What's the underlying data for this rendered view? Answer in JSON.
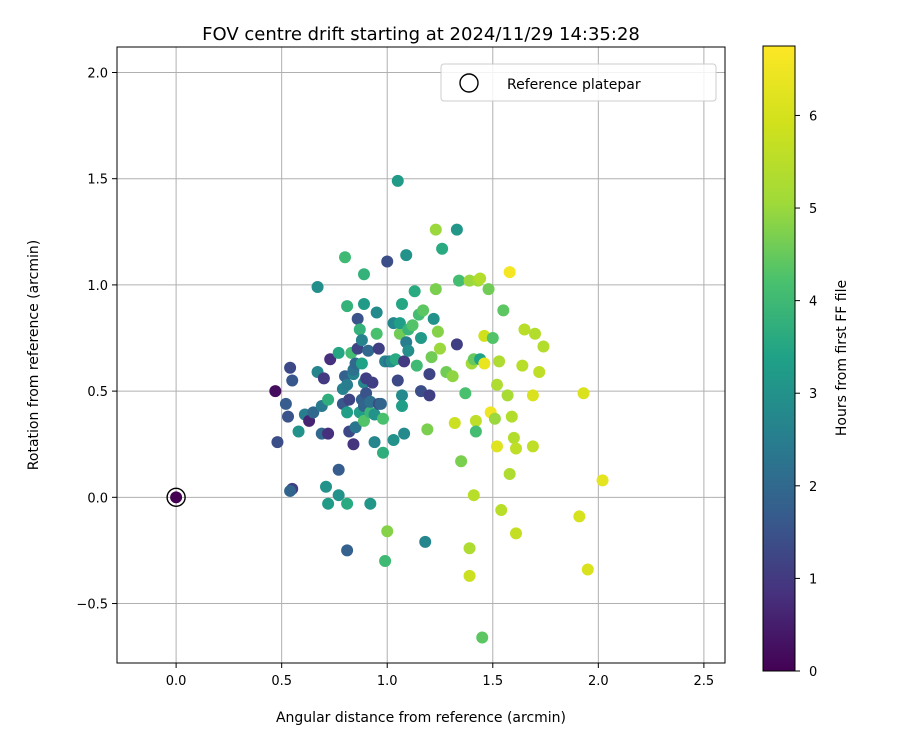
{
  "chart_data": {
    "type": "scatter",
    "title": "FOV centre drift starting at 2024/11/29 14:35:28",
    "xlabel": "Angular distance from reference (arcmin)",
    "ylabel": "Rotation from reference (arcmin)",
    "xlim": [
      -0.28,
      2.6
    ],
    "ylim": [
      -0.78,
      2.12
    ],
    "xticks": [
      0.0,
      0.5,
      1.0,
      1.5,
      2.0,
      2.5
    ],
    "xtick_labels": [
      "0.0",
      "0.5",
      "1.0",
      "1.5",
      "2.0",
      "2.5"
    ],
    "yticks": [
      -0.5,
      0.0,
      0.5,
      1.0,
      1.5,
      2.0
    ],
    "ytick_labels": [
      "−0.5",
      "0.0",
      "0.5",
      "1.0",
      "1.5",
      "2.0"
    ],
    "grid": true,
    "legend": {
      "position": "top-right",
      "label": "Reference platepar"
    },
    "reference_point": {
      "x": 0.0,
      "y": 0.0
    },
    "colorbar": {
      "label": "Hours from first FF file",
      "colormap": "viridis",
      "range": [
        0,
        6.75
      ],
      "ticks": [
        0,
        1,
        2,
        3,
        4,
        5,
        6
      ],
      "tick_labels": [
        "0",
        "1",
        "2",
        "3",
        "4",
        "5",
        "6"
      ]
    },
    "series": [
      {
        "fields": [
          "x",
          "y",
          "hours"
        ],
        "points": [
          [
            0.47,
            0.5,
            0.2
          ],
          [
            0.48,
            0.26,
            1.4
          ],
          [
            0.52,
            0.44,
            1.7
          ],
          [
            0.53,
            0.38,
            1.5
          ],
          [
            0.54,
            0.61,
            1.3
          ],
          [
            0.55,
            0.55,
            1.6
          ],
          [
            0.55,
            0.04,
            1.1
          ],
          [
            0.54,
            0.03,
            1.9
          ],
          [
            0.58,
            0.31,
            3.0
          ],
          [
            0.61,
            0.39,
            2.5
          ],
          [
            0.63,
            0.36,
            0.6
          ],
          [
            0.65,
            0.4,
            2.0
          ],
          [
            0.67,
            0.59,
            2.7
          ],
          [
            0.67,
            0.99,
            2.9
          ],
          [
            0.69,
            0.43,
            2.4
          ],
          [
            0.69,
            0.3,
            2.0
          ],
          [
            0.7,
            0.56,
            1.0
          ],
          [
            0.71,
            0.05,
            3.0
          ],
          [
            0.72,
            0.46,
            3.7
          ],
          [
            0.72,
            -0.03,
            3.2
          ],
          [
            0.72,
            0.3,
            0.8
          ],
          [
            0.73,
            0.65,
            0.8
          ],
          [
            0.77,
            0.13,
            1.7
          ],
          [
            0.77,
            0.01,
            3.0
          ],
          [
            0.77,
            0.68,
            3.5
          ],
          [
            0.79,
            0.51,
            2.6
          ],
          [
            0.79,
            0.44,
            1.6
          ],
          [
            0.8,
            1.13,
            4.0
          ],
          [
            0.8,
            0.57,
            1.8
          ],
          [
            0.81,
            0.53,
            2.5
          ],
          [
            0.81,
            0.4,
            3.3
          ],
          [
            0.81,
            -0.25,
            1.8
          ],
          [
            0.81,
            0.9,
            3.8
          ],
          [
            0.81,
            -0.03,
            3.6
          ],
          [
            0.82,
            0.31,
            1.3
          ],
          [
            0.82,
            0.46,
            1.2
          ],
          [
            0.83,
            0.68,
            4.1
          ],
          [
            0.84,
            0.25,
            0.9
          ],
          [
            0.84,
            0.58,
            2.6
          ],
          [
            0.84,
            0.6,
            2.2
          ],
          [
            0.85,
            0.33,
            2.3
          ],
          [
            0.85,
            0.63,
            2.0
          ],
          [
            0.86,
            0.84,
            1.5
          ],
          [
            0.86,
            0.7,
            1.2
          ],
          [
            0.87,
            0.79,
            3.8
          ],
          [
            0.87,
            0.4,
            3.3
          ],
          [
            0.88,
            0.63,
            3.4
          ],
          [
            0.88,
            0.46,
            1.8
          ],
          [
            0.88,
            0.74,
            2.6
          ],
          [
            0.89,
            0.43,
            1.9
          ],
          [
            0.89,
            0.36,
            4.3
          ],
          [
            0.89,
            1.05,
            3.8
          ],
          [
            0.89,
            0.91,
            3.2
          ],
          [
            0.89,
            0.54,
            2.7
          ],
          [
            0.9,
            0.56,
            1.1
          ],
          [
            0.9,
            0.49,
            1.5
          ],
          [
            0.91,
            0.69,
            2.0
          ],
          [
            0.92,
            0.4,
            3.9
          ],
          [
            0.92,
            -0.03,
            3.1
          ],
          [
            0.92,
            0.45,
            2.2
          ],
          [
            0.93,
            0.54,
            1.1
          ],
          [
            0.94,
            0.39,
            3.0
          ],
          [
            0.94,
            0.26,
            2.7
          ],
          [
            0.95,
            0.87,
            2.8
          ],
          [
            0.95,
            0.77,
            4.2
          ],
          [
            0.96,
            0.44,
            1.4
          ],
          [
            0.96,
            0.7,
            1.1
          ],
          [
            0.97,
            0.44,
            1.9
          ],
          [
            0.98,
            0.21,
            3.7
          ],
          [
            0.98,
            0.37,
            4.2
          ],
          [
            0.99,
            -0.3,
            4.0
          ],
          [
            0.99,
            0.64,
            2.6
          ],
          [
            1.0,
            1.11,
            1.4
          ],
          [
            1.0,
            -0.16,
            4.8
          ],
          [
            1.01,
            0.64,
            2.2
          ],
          [
            1.02,
            0.64,
            2.9
          ],
          [
            1.03,
            0.27,
            3.0
          ],
          [
            1.03,
            0.82,
            2.7
          ],
          [
            1.04,
            0.65,
            3.6
          ],
          [
            1.05,
            0.55,
            1.3
          ],
          [
            1.05,
            1.49,
            3.2
          ],
          [
            1.06,
            0.77,
            4.6
          ],
          [
            1.06,
            0.82,
            3.3
          ],
          [
            1.07,
            0.48,
            2.8
          ],
          [
            1.07,
            0.43,
            3.3
          ],
          [
            1.07,
            0.91,
            3.5
          ],
          [
            1.08,
            0.64,
            1.0
          ],
          [
            1.08,
            0.3,
            2.8
          ],
          [
            1.09,
            1.14,
            3.0
          ],
          [
            1.09,
            0.73,
            2.5
          ],
          [
            1.1,
            0.79,
            3.9
          ],
          [
            1.1,
            0.69,
            2.9
          ],
          [
            1.12,
            0.81,
            4.3
          ],
          [
            1.13,
            0.97,
            3.6
          ],
          [
            1.14,
            0.62,
            4.0
          ],
          [
            1.15,
            0.86,
            4.1
          ],
          [
            1.16,
            0.75,
            3.2
          ],
          [
            1.16,
            0.5,
            1.4
          ],
          [
            1.17,
            0.88,
            4.4
          ],
          [
            1.18,
            -0.21,
            2.7
          ],
          [
            1.19,
            0.32,
            4.7
          ],
          [
            1.2,
            0.58,
            1.2
          ],
          [
            1.2,
            0.48,
            1.1
          ],
          [
            1.21,
            0.66,
            4.6
          ],
          [
            1.22,
            0.84,
            3.0
          ],
          [
            1.23,
            0.98,
            4.7
          ],
          [
            1.23,
            1.26,
            5.0
          ],
          [
            1.24,
            0.78,
            4.8
          ],
          [
            1.25,
            0.7,
            5.0
          ],
          [
            1.26,
            1.17,
            3.6
          ],
          [
            1.28,
            0.59,
            4.6
          ],
          [
            1.31,
            0.57,
            4.9
          ],
          [
            1.32,
            0.35,
            5.8
          ],
          [
            1.33,
            0.72,
            1.1
          ],
          [
            1.33,
            1.26,
            3.1
          ],
          [
            1.34,
            1.02,
            4.1
          ],
          [
            1.35,
            0.17,
            4.7
          ],
          [
            1.37,
            0.49,
            4.2
          ],
          [
            1.39,
            -0.24,
            5.3
          ],
          [
            1.39,
            -0.37,
            5.8
          ],
          [
            1.39,
            1.02,
            5.0
          ],
          [
            1.4,
            0.63,
            5.1
          ],
          [
            1.41,
            0.01,
            5.5
          ],
          [
            1.41,
            0.65,
            4.5
          ],
          [
            1.42,
            0.36,
            5.6
          ],
          [
            1.42,
            0.31,
            4.1
          ],
          [
            1.43,
            1.02,
            5.1
          ],
          [
            1.44,
            1.03,
            5.4
          ],
          [
            1.44,
            0.65,
            3.4
          ],
          [
            1.45,
            -0.66,
            4.4
          ],
          [
            1.46,
            0.76,
            5.9
          ],
          [
            1.46,
            0.63,
            6.4
          ],
          [
            1.48,
            0.98,
            4.6
          ],
          [
            1.49,
            0.4,
            6.5
          ],
          [
            1.5,
            0.75,
            4.3
          ],
          [
            1.51,
            0.37,
            5.0
          ],
          [
            1.52,
            0.24,
            6.2
          ],
          [
            1.52,
            0.53,
            5.3
          ],
          [
            1.53,
            0.64,
            5.3
          ],
          [
            1.54,
            -0.06,
            5.5
          ],
          [
            1.55,
            0.88,
            4.4
          ],
          [
            1.57,
            0.48,
            5.2
          ],
          [
            1.58,
            0.11,
            5.3
          ],
          [
            1.58,
            1.06,
            6.6
          ],
          [
            1.59,
            0.38,
            5.4
          ],
          [
            1.6,
            0.28,
            5.4
          ],
          [
            1.61,
            0.23,
            5.6
          ],
          [
            1.61,
            -0.17,
            5.7
          ],
          [
            1.64,
            0.62,
            5.5
          ],
          [
            1.65,
            0.79,
            5.5
          ],
          [
            1.69,
            0.48,
            6.1
          ],
          [
            1.69,
            0.24,
            5.6
          ],
          [
            1.7,
            0.77,
            5.4
          ],
          [
            1.72,
            0.59,
            5.6
          ],
          [
            1.74,
            0.71,
            5.4
          ],
          [
            1.91,
            -0.09,
            6.0
          ],
          [
            1.93,
            0.49,
            6.1
          ],
          [
            1.95,
            -0.34,
            6.1
          ],
          [
            2.02,
            0.08,
            6.3
          ]
        ]
      }
    ]
  }
}
